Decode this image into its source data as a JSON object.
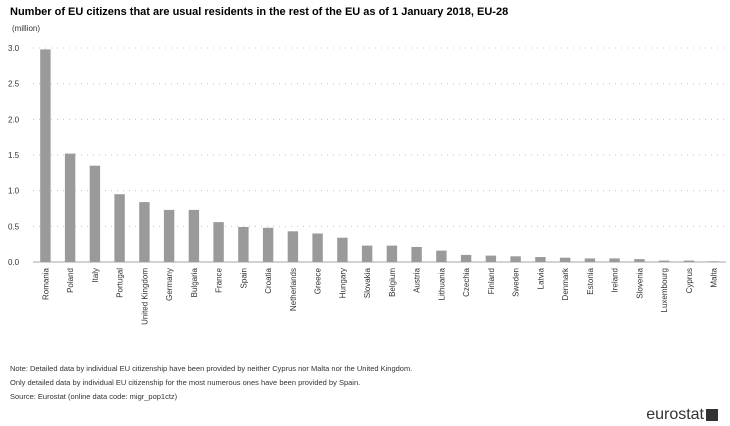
{
  "title": "Number of EU citizens that are usual residents in the rest of the EU as of 1 January 2018, EU-28",
  "unit": "(million)",
  "chart_data": {
    "type": "bar",
    "title": "Number of EU citizens that are usual residents in the rest of the EU as of 1 January 2018, EU-28",
    "ylabel": "(million)",
    "xlabel": "",
    "ylim": [
      0,
      3.0
    ],
    "yticks": [
      "0.0",
      "0.5",
      "1.0",
      "1.5",
      "2.0",
      "2.5",
      "3.0"
    ],
    "grid": true,
    "categories": [
      "Romania",
      "Poland",
      "Italy",
      "Portugal",
      "United Kingdom",
      "Germany",
      "Bulgaria",
      "France",
      "Spain",
      "Croatia",
      "Netherlands",
      "Greece",
      "Hungary",
      "Slovakia",
      "Belgium",
      "Austria",
      "Lithuania",
      "Czechia",
      "Finland",
      "Sweden",
      "Latvia",
      "Denmark",
      "Estonia",
      "Ireland",
      "Slovenia",
      "Luxembourg",
      "Cyprus",
      "Malta"
    ],
    "values": [
      2.98,
      1.52,
      1.35,
      0.95,
      0.84,
      0.73,
      0.73,
      0.56,
      0.49,
      0.48,
      0.43,
      0.4,
      0.34,
      0.23,
      0.23,
      0.21,
      0.16,
      0.1,
      0.09,
      0.08,
      0.07,
      0.06,
      0.05,
      0.05,
      0.04,
      0.02,
      0.02,
      0.01
    ],
    "color": "#9a9a9a"
  },
  "notes": [
    "Note: Detailed data by individual EU citizenship have been provided by neither Cyprus nor Malta nor the United Kingdom.",
    "Only detailed data by individual EU citizenship for the most numerous ones have been provided by Spain.",
    "Source: Eurostat (online data code: migr_pop1ctz)"
  ],
  "logo": {
    "text": "eurostat"
  }
}
